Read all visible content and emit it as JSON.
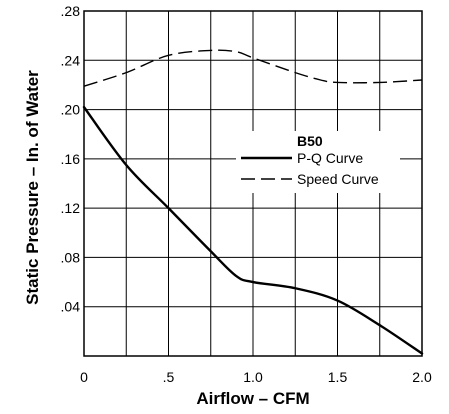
{
  "chart_data": {
    "type": "line",
    "title": "",
    "xlabel": "Airflow – CFM",
    "ylabel": "Static Pressure – In. of Water",
    "xlim": [
      0,
      2.0
    ],
    "ylim": [
      0,
      0.28
    ],
    "x_ticks": [
      {
        "value": 0,
        "label": "0"
      },
      {
        "value": 0.5,
        "label": ".5"
      },
      {
        "value": 1.0,
        "label": "1.0"
      },
      {
        "value": 1.5,
        "label": "1.5"
      },
      {
        "value": 2.0,
        "label": "2.0"
      }
    ],
    "y_ticks": [
      {
        "value": 0.04,
        "label": ".04"
      },
      {
        "value": 0.08,
        "label": ".08"
      },
      {
        "value": 0.12,
        "label": ".12"
      },
      {
        "value": 0.16,
        "label": ".16"
      },
      {
        "value": 0.2,
        "label": ".20"
      },
      {
        "value": 0.24,
        "label": ".24"
      },
      {
        "value": 0.28,
        "label": ".28"
      }
    ],
    "grid_x": [
      0.25,
      0.5,
      0.75,
      1.0,
      1.25,
      1.5,
      1.75
    ],
    "grid_y": [
      0.04,
      0.08,
      0.12,
      0.16,
      0.2,
      0.24
    ],
    "grid": true,
    "legend": {
      "title": "B50",
      "placement": "center-right"
    },
    "series": [
      {
        "name": "P-Q Curve",
        "style": "solid",
        "color": "#000000",
        "points": [
          [
            0,
            0.202
          ],
          [
            0.25,
            0.155
          ],
          [
            0.5,
            0.12
          ],
          [
            0.75,
            0.085
          ],
          [
            0.9,
            0.065
          ],
          [
            1.0,
            0.06
          ],
          [
            1.25,
            0.055
          ],
          [
            1.5,
            0.045
          ],
          [
            1.75,
            0.025
          ],
          [
            2.0,
            0.002
          ]
        ]
      },
      {
        "name": "Speed Curve",
        "style": "dashed",
        "color": "#000000",
        "points": [
          [
            0,
            0.219
          ],
          [
            0.25,
            0.23
          ],
          [
            0.5,
            0.244
          ],
          [
            0.75,
            0.248
          ],
          [
            0.9,
            0.247
          ],
          [
            1.0,
            0.242
          ],
          [
            1.25,
            0.23
          ],
          [
            1.4,
            0.224
          ],
          [
            1.5,
            0.222
          ],
          [
            1.75,
            0.222
          ],
          [
            2.0,
            0.224
          ]
        ]
      }
    ]
  }
}
